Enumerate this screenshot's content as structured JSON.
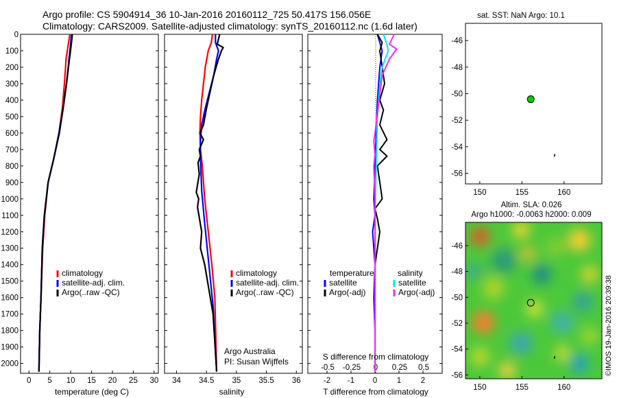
{
  "title_line1": "Argo profile: CS 5904914_36 10-Jan-2016 20160112_725 50.417S 156.056E",
  "title_line2": "Climatology: CARS2009. Satellite-adjusted climatology: synTS_20160112.nc (1.6d later)",
  "watermark": "©IMOS 19-Jan-2016 20:39:38",
  "colors": {
    "climatology": "#ff0000",
    "satellite": "#0000ff",
    "argo": "#000000",
    "sal_satellite": "#00e5ee",
    "sal_argo": "#ff22ff",
    "dot": "#00cc00"
  },
  "chart_data": [
    {
      "type": "line",
      "name": "temperature-profile",
      "xlabel": "temperature (deg C)",
      "ylabel": "",
      "xlim": [
        -2,
        31
      ],
      "ylim": [
        2060,
        0
      ],
      "xticks": [
        0,
        5,
        10,
        15,
        20,
        25,
        30
      ],
      "yticks": [
        0,
        100,
        200,
        300,
        400,
        500,
        600,
        700,
        800,
        900,
        1000,
        1100,
        1200,
        1300,
        1400,
        1500,
        1600,
        1700,
        1800,
        1900,
        2000
      ],
      "legend": [
        "climatology",
        "satellite-adj. clim.",
        "Argo(..raw -QC)"
      ],
      "legend_placement": "center",
      "series": [
        {
          "name": "climatology",
          "x": [
            9.8,
            9.5,
            8.9,
            8.5,
            8.0,
            7.2,
            6.0,
            4.6,
            3.8,
            3.3,
            2.9,
            2.6,
            2.4
          ],
          "y": [
            0,
            50,
            150,
            300,
            450,
            600,
            750,
            900,
            1100,
            1300,
            1600,
            1800,
            2050
          ]
        },
        {
          "name": "satellite-adj. clim.",
          "x": [
            10.2,
            10.0,
            9.6,
            9.0,
            8.2,
            7.2,
            6.0,
            4.6,
            3.7,
            3.2,
            2.9,
            2.6,
            2.4
          ],
          "y": [
            0,
            50,
            150,
            300,
            450,
            600,
            750,
            900,
            1100,
            1300,
            1600,
            1800,
            2050
          ]
        },
        {
          "name": "Argo(..raw -QC)",
          "x": [
            10.4,
            10.2,
            9.7,
            9.0,
            8.2,
            7.3,
            6.0,
            4.6,
            3.7,
            3.2,
            2.9,
            2.6,
            2.4
          ],
          "y": [
            0,
            50,
            150,
            300,
            450,
            600,
            750,
            900,
            1100,
            1300,
            1600,
            1800,
            2050
          ]
        }
      ]
    },
    {
      "type": "line",
      "name": "salinity-profile",
      "xlabel": "salinity",
      "xlim": [
        33.8,
        36.1
      ],
      "ylim": [
        2060,
        0
      ],
      "xticks": [
        34,
        34.5,
        35,
        35.5,
        36
      ],
      "legend": [
        "climatology",
        "satellite-adj. clim.",
        "Argo(..raw -QC)"
      ],
      "legend_placement": "center-right",
      "annotation": [
        "Argo Australia",
        "PI: Susan Wijffels"
      ],
      "series": [
        {
          "name": "climatology",
          "x": [
            34.6,
            34.58,
            34.53,
            34.48,
            34.45,
            34.42,
            34.4,
            34.39,
            34.4,
            34.43,
            34.47,
            34.53,
            34.59,
            34.64,
            34.67
          ],
          "y": [
            0,
            50,
            100,
            200,
            300,
            400,
            500,
            600,
            700,
            800,
            1000,
            1200,
            1400,
            1600,
            2050
          ]
        },
        {
          "name": "satellite-adj. clim.",
          "x": [
            34.65,
            34.65,
            34.7,
            34.67,
            34.62,
            34.55,
            34.48,
            34.42,
            34.4,
            34.4,
            34.42,
            34.47,
            34.54,
            34.61,
            34.67
          ],
          "y": [
            0,
            50,
            100,
            150,
            250,
            350,
            450,
            550,
            650,
            750,
            950,
            1150,
            1400,
            1650,
            2050
          ]
        },
        {
          "name": "Argo(..raw -QC)",
          "x": [
            34.72,
            34.68,
            34.78,
            34.75,
            34.7,
            34.62,
            34.56,
            34.5,
            34.45,
            34.39,
            34.45,
            34.38,
            34.4,
            34.36,
            34.38,
            34.33,
            34.37,
            34.35,
            34.42,
            34.4,
            34.47,
            34.54,
            34.61,
            34.67
          ],
          "y": [
            0,
            60,
            80,
            100,
            150,
            250,
            350,
            450,
            550,
            600,
            640,
            700,
            740,
            780,
            850,
            960,
            1000,
            1050,
            1200,
            1300,
            1400,
            1550,
            1700,
            2050
          ]
        }
      ]
    },
    {
      "type": "line",
      "name": "difference-profile",
      "xlabel": "T difference from climatology",
      "xlabel_top": "S difference from climatology",
      "xlim": [
        -2.8,
        2.8
      ],
      "ylim": [
        2060,
        0
      ],
      "xticks": [
        -2,
        -1,
        0,
        1,
        2
      ],
      "xticks_S": [
        -0.5,
        -0.25,
        0,
        0.25,
        0.5
      ],
      "legend_temperature": [
        "temperature",
        "satellite",
        "Argo(-adj)"
      ],
      "legend_salinity": [
        "salinity",
        "satellite",
        "Argo(-adj)"
      ],
      "series": [
        {
          "name": "temperature satellite",
          "x": [
            0.1,
            0.2,
            0.3,
            0.2,
            0.1,
            0.05,
            0.0,
            -0.05,
            0.0,
            -0.1,
            0.0,
            -0.05,
            0.0,
            0.0
          ],
          "y": [
            0,
            50,
            100,
            200,
            400,
            600,
            800,
            1000,
            1100,
            1200,
            1400,
            1600,
            1800,
            2050
          ]
        },
        {
          "name": "temperature Argo(-adj)",
          "x": [
            0.1,
            0.3,
            0.2,
            0.4,
            0.2,
            0.35,
            0.2,
            0.5,
            0.2,
            0.5,
            0.1,
            0.3,
            0.0,
            0.1,
            0.2,
            0.0,
            0.0
          ],
          "y": [
            0,
            50,
            100,
            300,
            400,
            460,
            550,
            640,
            700,
            740,
            800,
            1000,
            1060,
            1120,
            1200,
            1400,
            2050
          ]
        },
        {
          "name": "salinity satellite",
          "x": [
            0.35,
            0.5,
            0.55,
            0.3,
            0.2,
            0.1,
            0.05,
            0.0,
            0.0,
            0.0
          ],
          "y": [
            0,
            60,
            100,
            200,
            300,
            500,
            800,
            1100,
            1500,
            2050
          ]
        },
        {
          "name": "salinity Argo(-adj)",
          "x": [
            0.8,
            0.6,
            0.9,
            0.6,
            0.3,
            0.0,
            -0.05,
            0.0,
            -0.05,
            0.0,
            0.0
          ],
          "y": [
            0,
            60,
            90,
            150,
            250,
            600,
            650,
            730,
            800,
            1000,
            2050
          ]
        }
      ]
    },
    {
      "type": "scatter",
      "name": "sst-map",
      "title": "sat. SST: NaN Argo: 10.1",
      "xlim": [
        148.3,
        164.5
      ],
      "ylim": [
        -56.8,
        -44.7
      ],
      "xticks": [
        150,
        155,
        160
      ],
      "yticks": [
        -46,
        -48,
        -50,
        -52,
        -54,
        -56
      ],
      "points": [
        {
          "x": 156.05,
          "y": -50.417
        }
      ],
      "track": [
        {
          "x": 158.9,
          "y": -54.55
        },
        {
          "x": 158.85,
          "y": -54.75
        }
      ]
    },
    {
      "type": "heatmap",
      "name": "sla-map",
      "title_line1": "Altim. SLA: 0.026",
      "title_line2": "Argo h1000: -0.0063 h2000: 0.009",
      "xlim": [
        148.3,
        164.5
      ],
      "ylim": [
        -56.3,
        -44.2
      ],
      "xticks": [
        150,
        155,
        160
      ],
      "yticks": [
        -46,
        -48,
        -50,
        -52,
        -54,
        -56
      ],
      "points": [
        {
          "x": 156.05,
          "y": -50.417
        }
      ],
      "track": [
        {
          "x": 158.9,
          "y": -54.55
        },
        {
          "x": 158.85,
          "y": -54.75
        }
      ]
    }
  ]
}
